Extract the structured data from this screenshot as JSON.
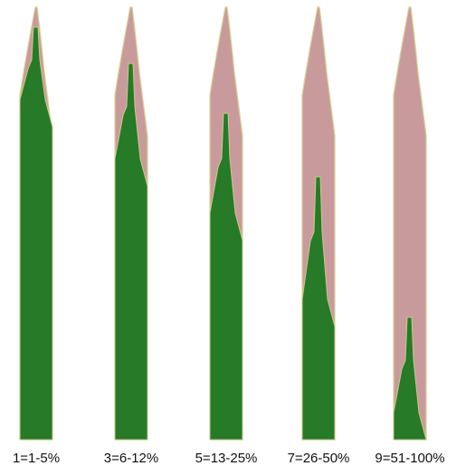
{
  "labels": [
    "1=1-5%",
    "3=6-12%",
    "5=13-25%",
    "7=26-50%",
    "9=51-100%"
  ]
}
